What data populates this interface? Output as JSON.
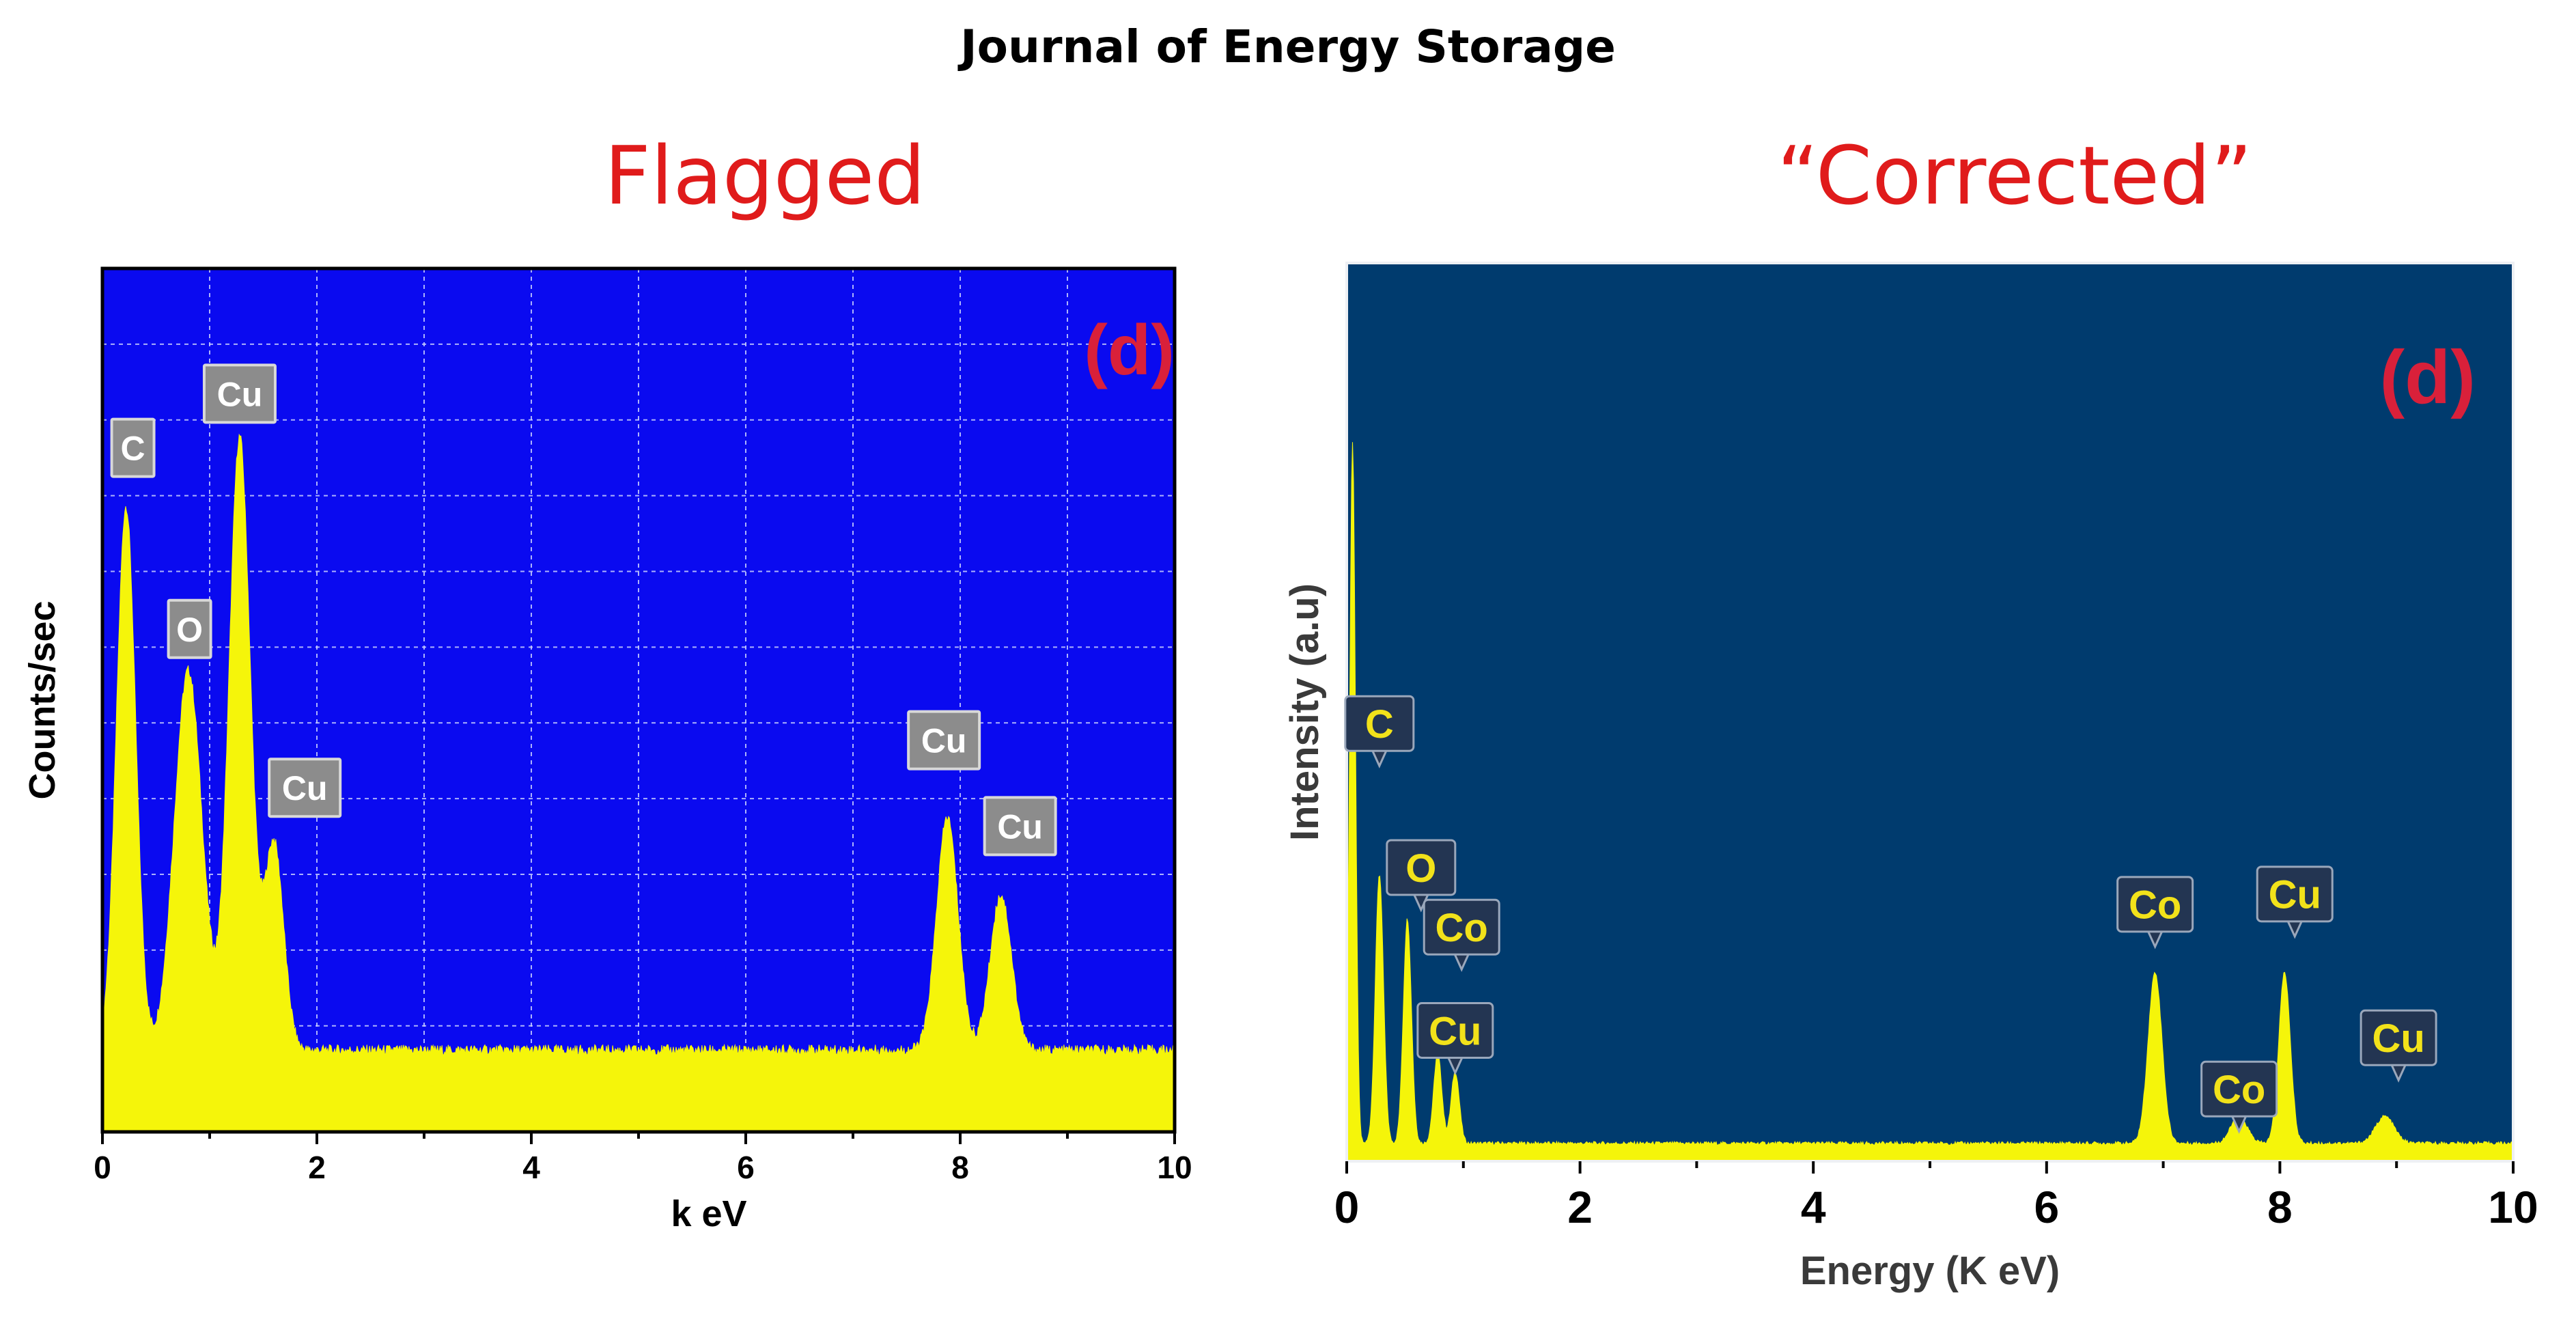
{
  "page": {
    "title": "Journal of Energy Storage",
    "left_heading": "Flagged",
    "right_heading": "“Corrected”"
  },
  "colors": {
    "left_background": "#0a0af0",
    "right_background": "#003b6e",
    "spectrum": "#f5f50a",
    "heading_red": "#e01b1b",
    "panel_letter_red": "#d9203a",
    "left_label_box": "#8c8c8c",
    "right_label_box": "#233552",
    "right_label_text": "#f2e21a"
  },
  "chart_data": [
    {
      "type": "area",
      "panel_letter": "(d)",
      "xlabel": "k eV",
      "ylabel": "Counts/sec",
      "xlim": [
        0,
        10
      ],
      "ylim": [
        0,
        1
      ],
      "x_ticks": [
        "0",
        "2",
        "4",
        "6",
        "8",
        "10"
      ],
      "grid": true,
      "baseline": 0.095,
      "peaks": [
        {
          "element": "C",
          "x": 0.22,
          "height": 0.63,
          "width": 0.09
        },
        {
          "element": "O",
          "x": 0.8,
          "height": 0.44,
          "width": 0.13
        },
        {
          "element": "Cu",
          "x": 1.28,
          "height": 0.71,
          "width": 0.1
        },
        {
          "element": "Cu",
          "x": 1.6,
          "height": 0.24,
          "width": 0.09
        },
        {
          "element": "Cu",
          "x": 7.88,
          "height": 0.27,
          "width": 0.1
        },
        {
          "element": "Cu",
          "x": 8.38,
          "height": 0.18,
          "width": 0.1
        }
      ],
      "labels": [
        {
          "text": "C",
          "x": 0.22
        },
        {
          "text": "O",
          "x": 0.8
        },
        {
          "text": "Cu",
          "x": 1.28
        },
        {
          "text": "Cu",
          "x": 1.6
        },
        {
          "text": "Cu",
          "x": 7.88
        },
        {
          "text": "Cu",
          "x": 8.38
        }
      ]
    },
    {
      "type": "area",
      "panel_letter": "(d)",
      "xlabel": "Energy (K eV)",
      "ylabel": "Intensity (a.u)",
      "xlim": [
        0,
        10
      ],
      "ylim": [
        0,
        1
      ],
      "x_ticks": [
        "0",
        "2",
        "4",
        "6",
        "8",
        "10"
      ],
      "grid": false,
      "baseline": 0.02,
      "peaks": [
        {
          "element": "",
          "x": 0.05,
          "height": 0.78,
          "width": 0.025
        },
        {
          "element": "C",
          "x": 0.28,
          "height": 0.3,
          "width": 0.035
        },
        {
          "element": "O",
          "x": 0.52,
          "height": 0.25,
          "width": 0.035
        },
        {
          "element": "Co",
          "x": 0.78,
          "height": 0.1,
          "width": 0.035
        },
        {
          "element": "Cu",
          "x": 0.93,
          "height": 0.08,
          "width": 0.035
        },
        {
          "element": "Co",
          "x": 6.93,
          "height": 0.19,
          "width": 0.06
        },
        {
          "element": "Co",
          "x": 7.65,
          "height": 0.03,
          "width": 0.07
        },
        {
          "element": "Cu",
          "x": 8.04,
          "height": 0.19,
          "width": 0.05
        },
        {
          "element": "Cu",
          "x": 8.9,
          "height": 0.03,
          "width": 0.08
        }
      ],
      "labels": [
        {
          "text": "C",
          "x": 0.28
        },
        {
          "text": "O",
          "x": 0.52
        },
        {
          "text": "Co",
          "x": 0.78
        },
        {
          "text": "Cu",
          "x": 0.93
        },
        {
          "text": "Co",
          "x": 6.93
        },
        {
          "text": "Co",
          "x": 7.65
        },
        {
          "text": "Cu",
          "x": 8.04
        },
        {
          "text": "Cu",
          "x": 8.9
        }
      ]
    }
  ]
}
